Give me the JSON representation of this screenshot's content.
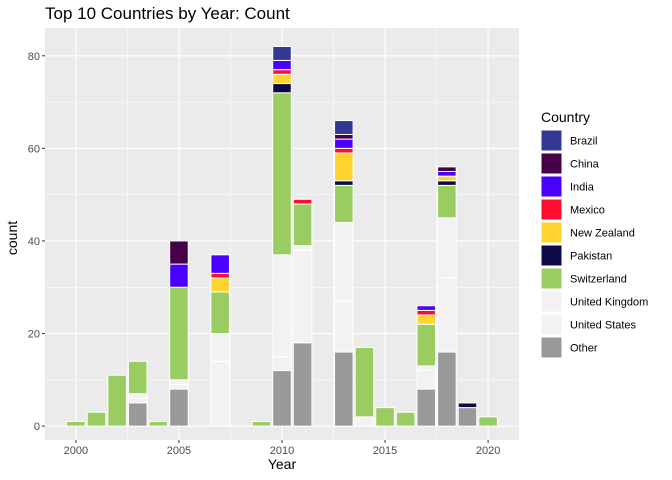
{
  "chart_data": {
    "type": "bar",
    "stacked": true,
    "title": "Top 10 Countries by Year: Count",
    "xlabel": "Year",
    "ylabel": "count",
    "xlim": [
      1998.5,
      2021.5
    ],
    "ylim": [
      -3,
      86
    ],
    "x_ticks": [
      2000,
      2005,
      2010,
      2015,
      2020
    ],
    "y_ticks": [
      0,
      20,
      40,
      60,
      80
    ],
    "grid": true,
    "legend": {
      "title": "Country",
      "position": "right"
    },
    "x": [
      2000,
      2001,
      2002,
      2003,
      2004,
      2005,
      2007,
      2009,
      2010,
      2011,
      2013,
      2014,
      2015,
      2016,
      2017,
      2018,
      2019,
      2020
    ],
    "series": [
      {
        "name": "Other",
        "color": "#999999",
        "values": [
          0,
          0,
          0,
          5,
          0,
          8,
          0,
          0,
          12,
          18,
          16,
          0,
          0,
          0,
          8,
          16,
          4,
          0
        ]
      },
      {
        "name": "United States",
        "color": "#F2F2F2",
        "values": [
          0,
          0,
          0,
          1,
          0,
          1,
          14,
          0,
          3,
          20,
          11,
          2,
          0,
          0,
          4,
          16,
          0,
          0
        ]
      },
      {
        "name": "United Kingdom",
        "color": "#F2F2F2",
        "values": [
          0,
          0,
          0,
          1,
          0,
          1,
          6,
          0,
          22,
          1,
          17,
          0,
          0,
          0,
          1,
          13,
          0,
          0
        ]
      },
      {
        "name": "Switzerland",
        "color": "#9ACD61",
        "values": [
          1,
          3,
          11,
          7,
          1,
          20,
          9,
          1,
          35,
          9,
          8,
          15,
          4,
          3,
          9,
          7,
          0,
          2
        ]
      },
      {
        "name": "Pakistan",
        "color": "#0D0A48",
        "values": [
          0,
          0,
          0,
          0,
          0,
          0,
          0,
          0,
          2,
          0,
          1,
          0,
          0,
          0,
          0,
          1,
          1,
          0
        ]
      },
      {
        "name": "New Zealand",
        "color": "#FFD42E",
        "values": [
          0,
          0,
          0,
          0,
          0,
          0,
          3,
          0,
          2,
          0,
          6,
          0,
          0,
          0,
          2,
          1,
          0,
          0
        ]
      },
      {
        "name": "Mexico",
        "color": "#FF0D2F",
        "values": [
          0,
          0,
          0,
          0,
          0,
          0,
          1,
          0,
          1,
          1,
          1,
          0,
          0,
          0,
          1,
          0,
          0,
          0
        ]
      },
      {
        "name": "India",
        "color": "#4A00FF",
        "values": [
          0,
          0,
          0,
          0,
          0,
          5,
          4,
          0,
          2,
          0,
          2,
          0,
          0,
          0,
          1,
          1,
          0,
          0
        ]
      },
      {
        "name": "China",
        "color": "#460047",
        "values": [
          0,
          0,
          0,
          0,
          0,
          5,
          0,
          0,
          0,
          0,
          1,
          0,
          0,
          0,
          0,
          1,
          0,
          0
        ]
      },
      {
        "name": "Brazil",
        "color": "#343895",
        "values": [
          0,
          0,
          0,
          0,
          0,
          0,
          0,
          0,
          3,
          0,
          3,
          0,
          0,
          0,
          0,
          0,
          0,
          0
        ]
      }
    ],
    "legend_order": [
      "Brazil",
      "China",
      "India",
      "Mexico",
      "New Zealand",
      "Pakistan",
      "Switzerland",
      "United Kingdom",
      "United States",
      "Other"
    ]
  }
}
